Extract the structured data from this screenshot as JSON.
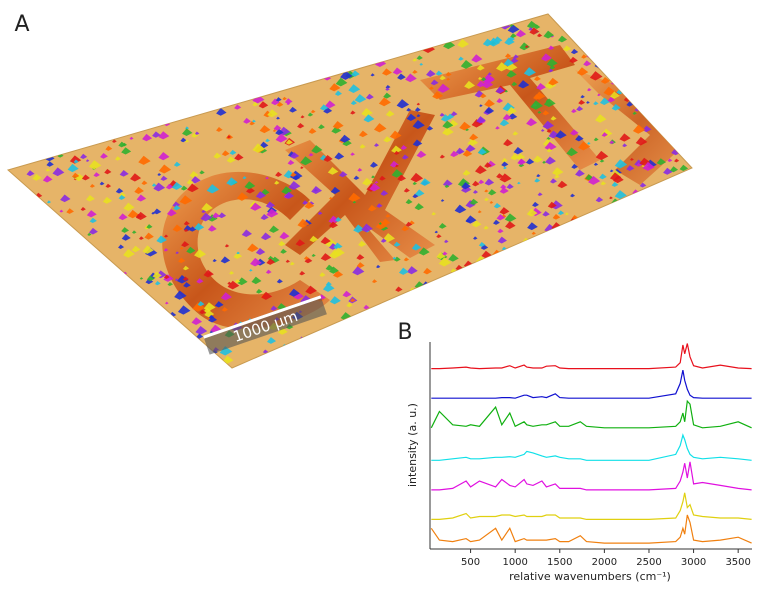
{
  "panel_a": {
    "label": "A",
    "scale_bar": "1000 µm"
  },
  "chart_data": {
    "type": "line",
    "panel_label": "B",
    "x_label": "relative wavenumbers (cm⁻¹)",
    "y_label": "intensity (a. u.)",
    "x": [
      60,
      150,
      300,
      450,
      500,
      600,
      780,
      850,
      940,
      1000,
      1100,
      1130,
      1200,
      1300,
      1350,
      1450,
      1500,
      1600,
      1730,
      1800,
      2000,
      2500,
      2800,
      2850,
      2880,
      2900,
      2930,
      2960,
      3000,
      3100,
      3300,
      3500,
      3650
    ],
    "xlim": [
      45,
      3655
    ],
    "xticks": [
      500,
      1000,
      1500,
      2000,
      2500,
      3000,
      3500
    ],
    "ylim": [
      0,
      7
    ],
    "series": [
      {
        "color": "#e8101c",
        "values": [
          6.1,
          6.1,
          6.12,
          6.15,
          6.12,
          6.1,
          6.12,
          6.12,
          6.2,
          6.12,
          6.22,
          6.15,
          6.12,
          6.12,
          6.18,
          6.2,
          6.12,
          6.1,
          6.1,
          6.1,
          6.1,
          6.1,
          6.15,
          6.3,
          6.9,
          6.6,
          6.95,
          6.5,
          6.2,
          6.12,
          6.22,
          6.12,
          6.1
        ]
      },
      {
        "color": "#1010d0",
        "values": [
          5.1,
          5.1,
          5.1,
          5.1,
          5.1,
          5.1,
          5.1,
          5.12,
          5.12,
          5.1,
          5.2,
          5.2,
          5.12,
          5.15,
          5.12,
          5.25,
          5.12,
          5.1,
          5.1,
          5.1,
          5.1,
          5.1,
          5.25,
          5.6,
          6.05,
          5.7,
          5.4,
          5.2,
          5.12,
          5.1,
          5.1,
          5.1,
          5.1
        ]
      },
      {
        "color": "#10b010",
        "values": [
          4.1,
          4.65,
          4.2,
          4.15,
          4.2,
          4.15,
          4.8,
          4.2,
          4.6,
          4.15,
          4.3,
          4.2,
          4.15,
          4.2,
          4.2,
          4.3,
          4.15,
          4.15,
          4.3,
          4.15,
          4.1,
          4.1,
          4.15,
          4.3,
          4.6,
          4.3,
          5.0,
          4.9,
          4.2,
          4.1,
          4.15,
          4.3,
          4.1
        ]
      },
      {
        "color": "#10e0e8",
        "values": [
          3.0,
          3.0,
          3.05,
          3.1,
          3.05,
          3.05,
          3.1,
          3.1,
          3.12,
          3.1,
          3.2,
          3.3,
          3.25,
          3.15,
          3.1,
          3.15,
          3.1,
          3.05,
          3.05,
          3.0,
          3.0,
          3.0,
          3.2,
          3.5,
          3.85,
          3.7,
          3.4,
          3.2,
          3.1,
          3.05,
          3.1,
          3.05,
          3.0
        ]
      },
      {
        "color": "#e010e0",
        "values": [
          2.0,
          2.0,
          2.05,
          2.3,
          2.1,
          2.3,
          2.1,
          2.35,
          2.15,
          2.1,
          2.35,
          2.2,
          2.15,
          2.3,
          2.1,
          2.2,
          2.05,
          2.05,
          2.05,
          2.0,
          2.0,
          2.0,
          2.05,
          2.3,
          2.6,
          2.9,
          2.4,
          2.95,
          2.2,
          2.25,
          2.15,
          2.05,
          2.0
        ]
      },
      {
        "color": "#e0d010",
        "values": [
          1.0,
          1.0,
          1.05,
          1.2,
          1.05,
          1.1,
          1.1,
          1.15,
          1.15,
          1.1,
          1.15,
          1.1,
          1.1,
          1.1,
          1.15,
          1.15,
          1.05,
          1.05,
          1.05,
          1.0,
          1.0,
          1.0,
          1.05,
          1.3,
          1.6,
          1.9,
          1.4,
          1.5,
          1.15,
          1.1,
          1.05,
          1.05,
          1.0
        ]
      },
      {
        "color": "#f08010",
        "values": [
          0.7,
          0.3,
          0.25,
          0.35,
          0.25,
          0.3,
          0.7,
          0.3,
          0.7,
          0.25,
          0.35,
          0.3,
          0.3,
          0.3,
          0.3,
          0.35,
          0.25,
          0.25,
          0.45,
          0.25,
          0.2,
          0.2,
          0.25,
          0.4,
          0.7,
          0.5,
          1.15,
          0.9,
          0.3,
          0.25,
          0.3,
          0.4,
          0.2
        ]
      }
    ]
  }
}
